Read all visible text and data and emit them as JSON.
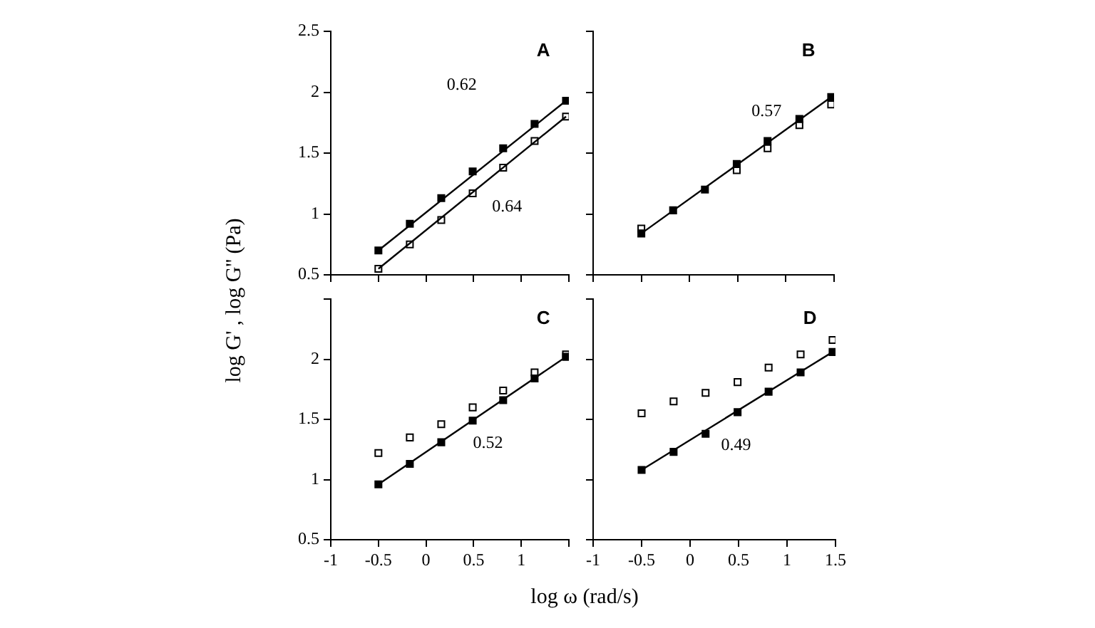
{
  "chart_data": [
    {
      "type": "scatter",
      "title": "A",
      "ylabel": "log G' , log G'' (Pa)",
      "xlim": [
        -1.0,
        1.5
      ],
      "xticks": [
        -1.0,
        -0.5,
        0.0,
        0.5,
        1.0,
        1.5
      ],
      "ylim": [
        0.5,
        2.5
      ],
      "yticks": [
        0.5,
        1.0,
        1.5,
        2.0,
        2.5
      ],
      "tick_labels": "y",
      "grid": false,
      "legend": false,
      "marker": "square",
      "x": [
        -0.5,
        -0.17,
        0.16,
        0.49,
        0.81,
        1.14,
        1.47
      ],
      "series": [
        {
          "color": "#000000",
          "values": [
            0.7,
            0.92,
            1.13,
            1.35,
            1.54,
            1.74,
            1.93
          ]
        },
        {
          "color": "#ffffff",
          "values": [
            0.55,
            0.75,
            0.95,
            1.17,
            1.38,
            1.6,
            1.8
          ]
        },
        {
          "type": "line",
          "marker": "none",
          "color": "#000000",
          "values": [
            0.7,
            null,
            null,
            null,
            null,
            null,
            1.93
          ]
        },
        {
          "type": "line",
          "marker": "none",
          "color": "#000000",
          "values": [
            0.55,
            null,
            null,
            null,
            null,
            null,
            1.8
          ]
        }
      ],
      "annotations": [
        "0.62",
        "0.64"
      ]
    },
    {
      "type": "scatter",
      "title": "B",
      "xlim": [
        -1.0,
        1.5
      ],
      "xticks": [
        -1.0,
        -0.5,
        0.0,
        0.5,
        1.0,
        1.5
      ],
      "ylim": [
        0.5,
        2.5
      ],
      "yticks": [
        0.5,
        1.0,
        1.5,
        2.0,
        2.5
      ],
      "tick_labels": false,
      "grid": false,
      "legend": false,
      "marker": "square",
      "x": [
        -0.5,
        -0.17,
        0.16,
        0.49,
        0.81,
        1.14,
        1.47
      ],
      "series": [
        {
          "color": "#000000",
          "values": [
            0.84,
            1.03,
            1.2,
            1.41,
            1.6,
            1.78,
            1.96
          ]
        },
        {
          "color": "#ffffff",
          "values": [
            0.88,
            null,
            null,
            1.36,
            1.54,
            1.73,
            1.9
          ]
        },
        {
          "type": "line",
          "marker": "none",
          "color": "#000000",
          "values": [
            0.84,
            null,
            null,
            null,
            null,
            null,
            1.96
          ]
        }
      ],
      "annotations": [
        "0.57"
      ]
    },
    {
      "type": "scatter",
      "title": "C",
      "xlim": [
        -1.0,
        1.5
      ],
      "xticks": [
        -1.0,
        -0.5,
        0.0,
        0.5,
        1.0,
        {
          "value": 1.5,
          "label": null
        }
      ],
      "ylim": [
        0.5,
        2.5
      ],
      "yticks": [
        0.5,
        1.0,
        1.5,
        2.0,
        {
          "value": 2.5,
          "label": null
        }
      ],
      "grid": false,
      "legend": false,
      "marker": "square",
      "x": [
        -0.5,
        -0.17,
        0.16,
        0.49,
        0.81,
        1.14,
        1.47
      ],
      "series": [
        {
          "color": "#000000",
          "values": [
            0.96,
            1.13,
            1.31,
            1.49,
            1.66,
            1.84,
            2.02
          ]
        },
        {
          "color": "#ffffff",
          "values": [
            1.22,
            1.35,
            1.46,
            1.6,
            1.74,
            1.89,
            2.04
          ]
        },
        {
          "type": "line",
          "marker": "none",
          "color": "#000000",
          "values": [
            0.96,
            null,
            null,
            null,
            null,
            null,
            2.02
          ]
        }
      ],
      "annotations": [
        "0.52"
      ]
    },
    {
      "type": "scatter",
      "title": "D",
      "xlabel": "log ω  (rad/s)",
      "xlim": [
        -1.0,
        1.5
      ],
      "xticks": [
        -1.0,
        -0.5,
        0.0,
        0.5,
        1.0,
        1.5
      ],
      "ylim": [
        0.5,
        2.5
      ],
      "yticks": [
        0.5,
        1.0,
        1.5,
        2.0,
        2.5
      ],
      "tick_labels": "x",
      "grid": false,
      "legend": false,
      "marker": "square",
      "x": [
        -0.5,
        -0.17,
        0.16,
        0.49,
        0.81,
        1.14,
        1.47
      ],
      "series": [
        {
          "color": "#000000",
          "values": [
            1.08,
            1.23,
            1.38,
            1.56,
            1.73,
            1.89,
            2.06
          ]
        },
        {
          "color": "#ffffff",
          "values": [
            1.55,
            1.65,
            1.72,
            1.81,
            1.93,
            2.04,
            2.16
          ]
        },
        {
          "type": "line",
          "marker": "none",
          "color": "#000000",
          "values": [
            1.08,
            null,
            null,
            null,
            null,
            null,
            2.06
          ]
        }
      ],
      "annotations": [
        "0.49"
      ]
    }
  ]
}
